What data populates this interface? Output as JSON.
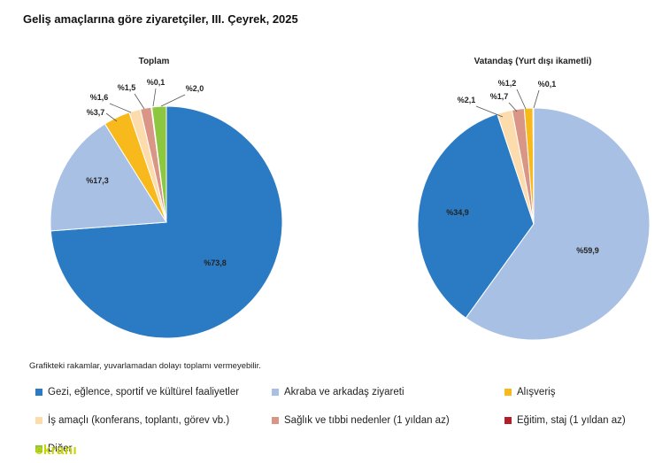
{
  "title": "Geliş amaçlarına göre ziyaretçiler, III. Çeyrek, 2025",
  "note": "Grafikteki rakamlar, yuvarlamadan dolayı toplamı vermeyebilir.",
  "watermark": "ekranı",
  "colors": {
    "gezi": "#2b7bc4",
    "akraba": "#a8c0e4",
    "alisveris": "#f7b91b",
    "is": "#fcdcac",
    "saglik": "#d99585",
    "egitim": "#b0202a",
    "diger": "#8dc63f"
  },
  "legend": [
    {
      "key": "gezi",
      "label": "Gezi, eğlence, sportif ve kültürel faaliyetler"
    },
    {
      "key": "akraba",
      "label": "Akraba ve arkadaş ziyareti"
    },
    {
      "key": "alisveris",
      "label": "Alışveriş"
    },
    {
      "key": "is",
      "label": "İş amaçlı (konferans, toplantı, görev vb.)"
    },
    {
      "key": "saglik",
      "label": "Sağlık ve tıbbi nedenler (1 yıldan az)"
    },
    {
      "key": "egitim",
      "label": "Eğitim, staj (1 yıldan az)"
    },
    {
      "key": "diger",
      "label": "Diğer"
    }
  ],
  "chart_data": [
    {
      "type": "pie",
      "title": "Toplam",
      "start_angle_deg": 0,
      "direction": "clockwise",
      "slices": [
        {
          "key": "gezi",
          "value": 73.8,
          "label": "%73,8"
        },
        {
          "key": "akraba",
          "value": 17.3,
          "label": "%17,3"
        },
        {
          "key": "alisveris",
          "value": 3.7,
          "label": "%3,7"
        },
        {
          "key": "is",
          "value": 1.6,
          "label": "%1,6"
        },
        {
          "key": "saglik",
          "value": 1.5,
          "label": "%1,5"
        },
        {
          "key": "egitim",
          "value": 0.1,
          "label": "%0,1"
        },
        {
          "key": "diger",
          "value": 2.0,
          "label": "%2,0"
        }
      ]
    },
    {
      "type": "pie",
      "title": "Vatandaş (Yurt dışı ikametli)",
      "start_angle_deg": 0,
      "direction": "clockwise",
      "slices": [
        {
          "key": "akraba",
          "value": 59.9,
          "label": "%59,9"
        },
        {
          "key": "gezi",
          "value": 34.9,
          "label": "%34,9"
        },
        {
          "key": "is",
          "value": 2.1,
          "label": "%2,1"
        },
        {
          "key": "saglik",
          "value": 1.7,
          "label": "%1,7"
        },
        {
          "key": "alisveris",
          "value": 1.2,
          "label": "%1,2"
        },
        {
          "key": "egitim",
          "value": 0.1,
          "label": "%0,1"
        }
      ]
    }
  ]
}
